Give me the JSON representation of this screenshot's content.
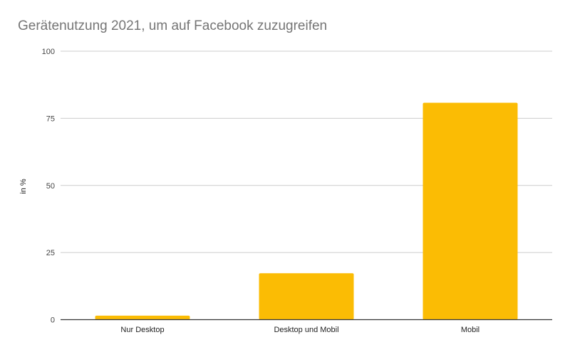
{
  "chart_data": {
    "type": "bar",
    "title": "Gerätenutzung 2021, um auf Facebook zuzugreifen",
    "xlabel": "",
    "ylabel": "in %",
    "categories": [
      "Nur Desktop",
      "Desktop und Mobil",
      "Mobil"
    ],
    "values": [
      1.5,
      17.3,
      80.8
    ],
    "ylim": [
      0,
      100
    ],
    "yticks": [
      0,
      25,
      50,
      75,
      100
    ],
    "grid": true,
    "legend": "none",
    "bar_color": "#fbbc04"
  }
}
